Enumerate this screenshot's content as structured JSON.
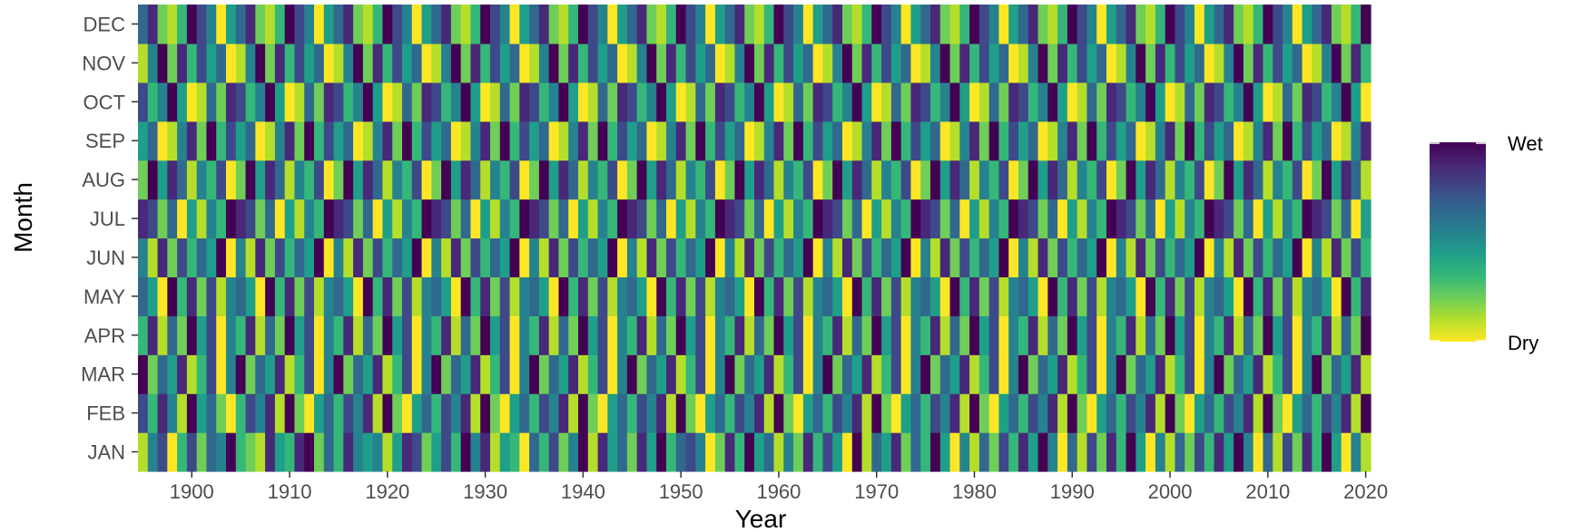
{
  "chart_data": {
    "type": "heatmap",
    "xlabel": "Year",
    "ylabel": "Month",
    "x_range": [
      1895,
      2020
    ],
    "x_ticks": [
      "1900",
      "1910",
      "1920",
      "1930",
      "1940",
      "1950",
      "1960",
      "1970",
      "1980",
      "1990",
      "2000",
      "2010",
      "2020"
    ],
    "months": [
      "JAN",
      "FEB",
      "MAR",
      "APR",
      "MAY",
      "JUN",
      "JUL",
      "AUG",
      "SEP",
      "OCT",
      "NOV",
      "DEC"
    ],
    "value_scale": "0 = Dry (yellow) to 1 = Wet (dark purple), viridis",
    "missing_value_color": "#808080",
    "legend": {
      "high_label": "Wet",
      "low_label": "Dry",
      "placement": "right"
    },
    "colors": [
      "#fde725",
      "#b5de2b",
      "#6ece58",
      "#35b779",
      "#1f9e89",
      "#26828e",
      "#31688e",
      "#3e4989",
      "#482878",
      "#440154"
    ],
    "levels_by_month": {
      "JAN": "15703726593218438926385451487247395814306372591846284936750283946152837409164826394051627384950617283940516273849506172839405162734",
      "FEB": "73851946203758192046375819204637581920463758192046375819204637581920463758192046375819204637581920463758192046375819204637581920463",
      "MAR": "92648137059264813705926481370592648137059264813705926481370592648137059264813705926481370592648137059264813705926481370592648137059",
      "APR": "38162947053816294705381629470538162947053816294705381629470538162947053816294705381629470538162947053816294705381629470538162947053",
      "MAY": "64093827156409382715640938271564093827156409382715640938271564093827156409382715640938271564093827156409382715640938271564093827156",
      "JUN": "51827364905182736490518273649051827364905182736490518273649051827364905182736490518273649051827364905182736490518273649051827364905",
      "JUL": "87260415398726041539872604153987260415398726041539872604153987260415398726041539872604153987260415398726041539872604153987260415398",
      "AUG": "29486153702948615370294861537029486153702948615370294861537029486153702948615370294861537029486153702948615370294861537029486153-",
      "SEP": "46015829374601582937460158293746015829374601582937460158293746015829374601582937460158293746015829374601582937460158293746015829-",
      "OCT": "73594016287359401628735940162873594016287359401628735940162873594016287359401628735940162873594016287359401628735940162873594016-",
      "NOV": "15928374601592837460159283746015928374601592837460159283746015928374601592837460159283746015928374601592837460159283746015928374-",
      "DEC": "68213975046821397504682139750468213975046821397504682139750468213975046821397504682139750468213975046821397504682139750468213975-"
    }
  }
}
